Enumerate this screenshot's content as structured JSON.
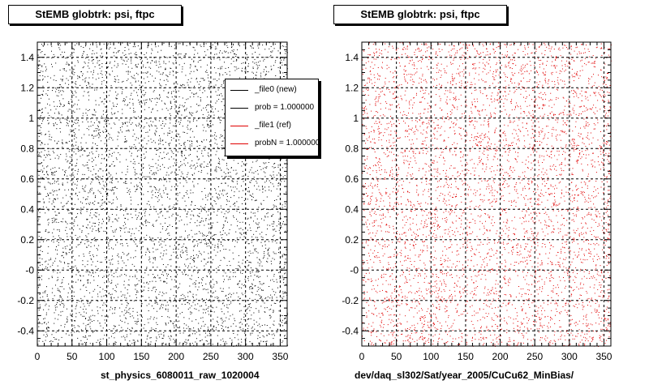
{
  "panels": [
    {
      "title": "StEMB globtrk: psi, ftpc",
      "footer": "st_physics_6080011_raw_1020004",
      "marker_color": "#000000"
    },
    {
      "title": "StEMB globtrk: psi, ftpc",
      "footer": "dev/daq_sl302/Sat/year_2005/CuCu62_MinBias/",
      "marker_color": "#e00000"
    }
  ],
  "legend": {
    "entries": [
      {
        "label": "_file0 (new)",
        "color": "#000000"
      },
      {
        "label": "prob = 1.000000",
        "color": "#000000"
      },
      {
        "label": "_file1 (ref)",
        "color": "#e00000"
      },
      {
        "label": "probN = 1.000000",
        "color": "#e00000"
      }
    ]
  },
  "chart_data": [
    {
      "type": "scatter",
      "title": "StEMB globtrk: psi, ftpc",
      "xlabel": "",
      "ylabel": "",
      "xlim": [
        0,
        360
      ],
      "ylim": [
        -0.5,
        1.5
      ],
      "x_ticks": [
        0,
        50,
        100,
        150,
        200,
        250,
        300,
        350
      ],
      "y_ticks": [
        "-0.4",
        "-0.2",
        "-0",
        "0.2",
        "0.4",
        "0.6",
        "0.8",
        "1",
        "1.2",
        "1.4"
      ],
      "y_tick_values": [
        -0.4,
        -0.2,
        0,
        0.2,
        0.4,
        0.6,
        0.8,
        1.0,
        1.2,
        1.4
      ],
      "grid": true,
      "series": [
        {
          "name": "_file0 (new)",
          "color": "#000000",
          "point_count": 5000,
          "distribution": "uniform"
        }
      ]
    },
    {
      "type": "scatter",
      "title": "StEMB globtrk: psi, ftpc",
      "xlabel": "",
      "ylabel": "",
      "xlim": [
        0,
        360
      ],
      "ylim": [
        -0.5,
        1.5
      ],
      "x_ticks": [
        0,
        50,
        100,
        150,
        200,
        250,
        300,
        350
      ],
      "y_ticks": [
        "-0.4",
        "-0.2",
        "-0",
        "0.2",
        "0.4",
        "0.6",
        "0.8",
        "1",
        "1.2",
        "1.4"
      ],
      "y_tick_values": [
        -0.4,
        -0.2,
        0,
        0.2,
        0.4,
        0.6,
        0.8,
        1.0,
        1.2,
        1.4
      ],
      "grid": true,
      "series": [
        {
          "name": "_file1 (ref)",
          "color": "#e00000",
          "point_count": 5000,
          "distribution": "uniform"
        }
      ]
    }
  ]
}
